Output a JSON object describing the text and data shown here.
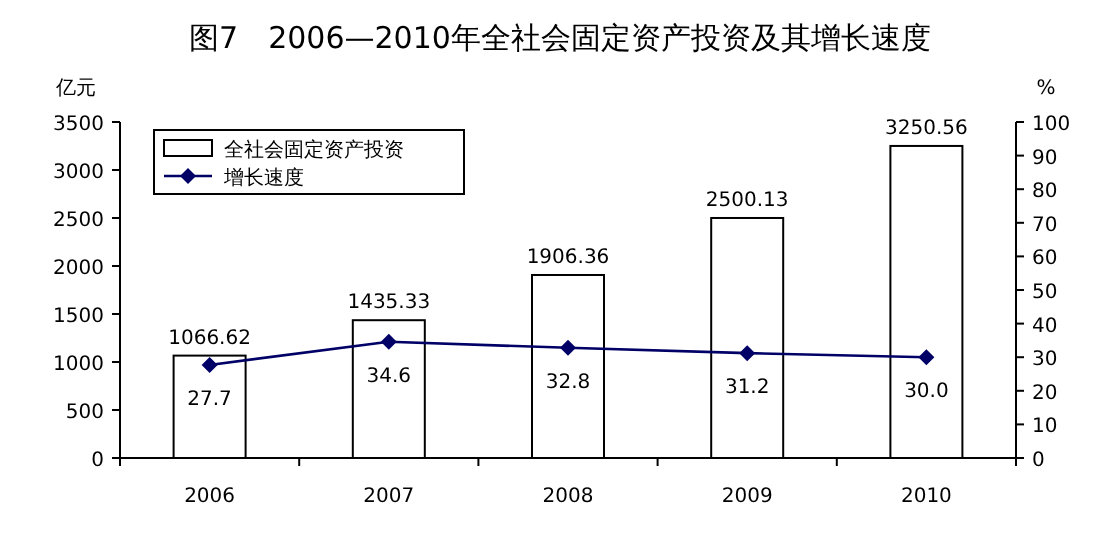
{
  "chart_data": {
    "type": "bar",
    "title": "图7　2006—2010年全社会固定资产投资及其增长速度",
    "ylabel": "亿元",
    "y2label": "%",
    "categories": [
      "2006",
      "2007",
      "2008",
      "2009",
      "2010"
    ],
    "series": [
      {
        "name": "全社会固定资产投资",
        "color": "#ffffff",
        "values": [
          1066.62,
          1435.33,
          1906.36,
          2500.13,
          3250.56
        ],
        "value_labels": [
          "1066.62",
          "1435.33",
          "1906.36",
          "2500.13",
          "3250.56"
        ]
      },
      {
        "name": "增长速度",
        "type": "line",
        "axis": "y2",
        "color": "#000066",
        "marker": "diamond",
        "values": [
          27.7,
          34.6,
          32.8,
          31.2,
          30.0
        ],
        "value_labels": [
          "27.7",
          "34.6",
          "32.8",
          "31.2",
          "30.0"
        ]
      }
    ],
    "ylim": [
      0,
      3500
    ],
    "yticks": [
      0,
      500,
      1000,
      1500,
      2000,
      2500,
      3000,
      3500
    ],
    "y2lim": [
      0,
      100
    ],
    "y2ticks": [
      0,
      10,
      20,
      30,
      40,
      50,
      60,
      70,
      80,
      90,
      100
    ],
    "legend": "top left",
    "grid": false
  }
}
